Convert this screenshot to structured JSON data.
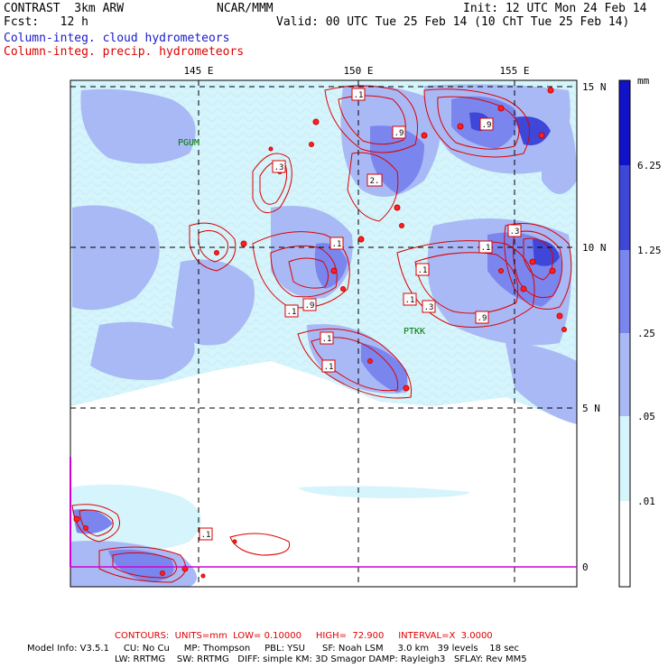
{
  "header": {
    "model": "CONTRAST  3km ARW",
    "org": "NCAR/MMM",
    "init": "Init: 12 UTC Mon 24 Feb 14",
    "fcst": "Fcst:   12 h",
    "valid": "Valid: 00 UTC Tue 25 Feb 14 (10 ChT Tue 25 Feb 14)",
    "field_cloud": "Column-integ. cloud hydrometeors",
    "field_precip": "Column-integ. precip. hydrometeors"
  },
  "map": {
    "lon_labels": [
      "145 E",
      "150 E",
      "155 E"
    ],
    "lat_labels": [
      "15 N",
      "10 N",
      "5 N",
      "0"
    ],
    "stations": [
      "PGUM",
      "PTKK"
    ],
    "contour_labels": [
      ".1",
      ".9",
      ".3",
      "2.",
      ".9",
      ".1",
      ".1",
      ".1",
      ".3",
      ".1",
      ".3",
      ".9",
      ".9",
      ".1",
      ".1",
      ".1",
      ".1"
    ],
    "colors": {
      "cloud_light": "#d6f4fb",
      "cloud_mid": "#a9b9f5",
      "cloud_dark": "#7a86ee",
      "cloud_deep": "#3e47d8",
      "contour": "#dd0000",
      "equator": "#d200d2"
    }
  },
  "colorbar": {
    "unit": "mm",
    "levels": [
      "6.25",
      "1.25",
      ".25",
      ".05",
      ".01"
    ],
    "colors": [
      "#1212c8",
      "#3e47d8",
      "#7a86ee",
      "#a9b9f5",
      "#d6f4fb",
      "#ffffff"
    ]
  },
  "footer": {
    "contours": "CONTOURS:  UNITS=mm  LOW= 0.10000     HIGH=  72.900     INTERVAL=X  3.0000",
    "info1": "Model Info: V3.5.1     CU: No Cu     MP: Thompson     PBL: YSU      SF: Noah LSM     3.0 km   39 levels    18 sec",
    "info2": "LW: RRTMG    SW: RRTMG   DIFF: simple KM: 3D Smagor DAMP: Rayleigh3   SFLAY: Rev MM5"
  }
}
